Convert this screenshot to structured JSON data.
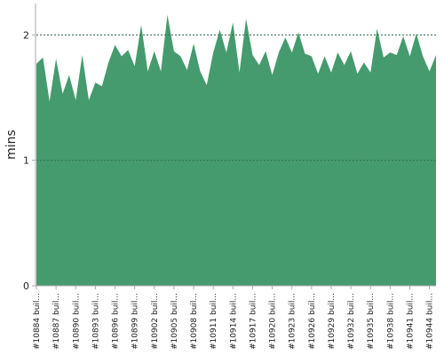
{
  "chart_data": {
    "type": "area",
    "ylabel": "mins",
    "xlabel": "",
    "title": "",
    "ylim": [
      0,
      2.25
    ],
    "yticks": [
      0,
      1,
      2
    ],
    "ytick_labels": [
      "0",
      "1",
      "2"
    ],
    "grid": "horizontal dashed at y ticks",
    "fill_color": "#459b6d",
    "grid_color": "#777777",
    "xtick_labels": [
      "#10884 buil...",
      "#10887 buil...",
      "#10890 buil...",
      "#10893 buil...",
      "#10896 buil...",
      "#10899 buil...",
      "#10902 buil...",
      "#10905 buil...",
      "#10908 buil...",
      "#10911 buil...",
      "#10914 buil...",
      "#10917 buil...",
      "#10920 buil...",
      "#10923 buil...",
      "#10926 buil...",
      "#10929 buil...",
      "#10932 buil...",
      "#10935 buil...",
      "#10938 buil...",
      "#10941 buil...",
      "#10944 buil..."
    ],
    "series": [
      {
        "values": [
          1.77,
          1.82,
          1.47,
          1.81,
          1.53,
          1.68,
          1.48,
          1.84,
          1.48,
          1.62,
          1.59,
          1.78,
          1.92,
          1.83,
          1.88,
          1.75,
          2.08,
          1.71,
          1.87,
          1.71,
          2.16,
          1.87,
          1.83,
          1.72,
          1.93,
          1.71,
          1.6,
          1.86,
          2.04,
          1.86,
          2.1,
          1.7,
          2.13,
          1.84,
          1.76,
          1.87,
          1.68,
          1.86,
          1.98,
          1.86,
          2.02,
          1.85,
          1.83,
          1.69,
          1.83,
          1.7,
          1.86,
          1.76,
          1.87,
          1.69,
          1.78,
          1.7,
          2.05,
          1.82,
          1.86,
          1.84,
          1.99,
          1.83,
          2.01,
          1.83,
          1.71,
          1.84
        ]
      }
    ]
  }
}
